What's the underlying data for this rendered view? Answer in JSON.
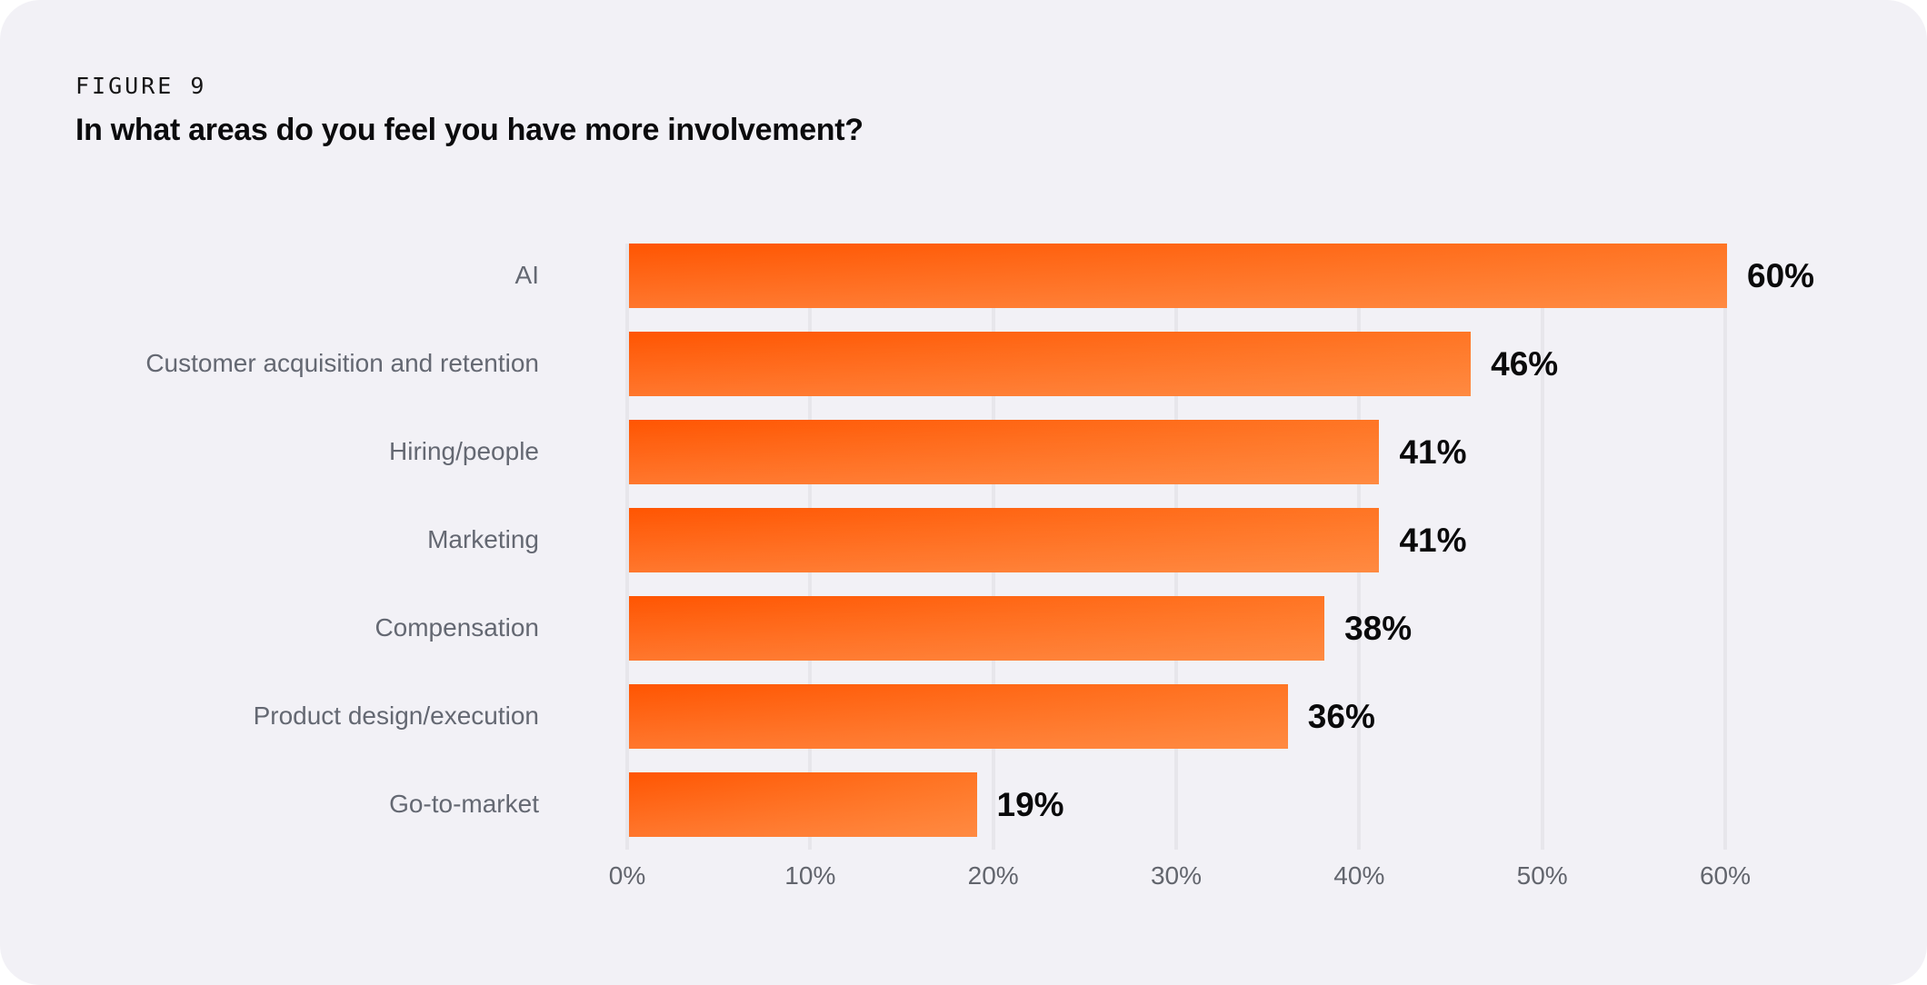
{
  "figure_label": "FIGURE 9",
  "title": "In what areas do you feel you have more involvement?",
  "colors": {
    "background": "#F2F1F6",
    "page": "#FFFFFF",
    "bar_gradient_start": "#FF5502",
    "bar_gradient_end": "#FF7524",
    "bar_bottom_glow": "rgba(255,170,110,0.4)",
    "gridline": "#E7E6EB",
    "category_label": "#646872",
    "tick_label": "#62656D",
    "value_label": "#0A0A0B",
    "title_color": "#0B0B0D"
  },
  "chart_data": {
    "type": "bar",
    "orientation": "horizontal",
    "title": "In what areas do you feel you have more involvement?",
    "categories": [
      "AI",
      "Customer acquisition and retention",
      "Hiring/people",
      "Marketing",
      "Compensation",
      "Product design/execution",
      "Go-to-market"
    ],
    "values": [
      60,
      46,
      41,
      41,
      38,
      36,
      19
    ],
    "value_labels": [
      "60%",
      "46%",
      "41%",
      "41%",
      "38%",
      "36%",
      "19%"
    ],
    "x_ticks": [
      "0%",
      "10%",
      "20%",
      "30%",
      "40%",
      "50%",
      "60%"
    ],
    "xlim": [
      0,
      60
    ],
    "xlabel": "",
    "ylabel": "",
    "grid": true,
    "legend": false
  }
}
